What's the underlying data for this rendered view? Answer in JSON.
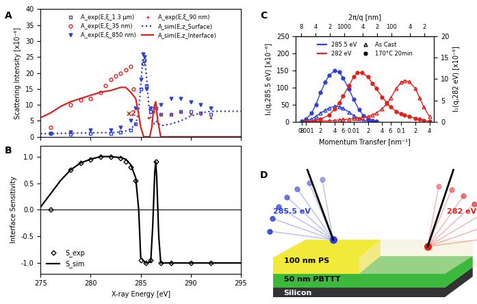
{
  "chart_data": [
    {
      "type": "line",
      "panel": "A",
      "ylabel": "Scattering Intensity [x10⁻⁶]",
      "xlim": [
        275,
        295
      ],
      "ylim": [
        0,
        40
      ],
      "xticks": [
        275,
        280,
        285,
        290,
        295
      ],
      "yticks": [
        0,
        5,
        10,
        15,
        20,
        25,
        30,
        35,
        40
      ],
      "tick_labels": "y",
      "legend": "upper center",
      "annotations": [
        {
          "text": "x2",
          "x": 283.6,
          "y": 6.5
        }
      ],
      "series": [
        {
          "name": "A_exp(E,ξ_1.3 µm)",
          "color": "#2a3fd6",
          "marker": "open_square",
          "line_style": "none",
          "x": [
            276,
            278,
            280,
            282,
            283,
            284,
            284.5,
            285,
            285.2,
            285.4,
            285.6,
            286,
            286.5,
            287,
            288,
            289,
            290,
            291,
            292
          ],
          "values": [
            1,
            0.8,
            1,
            1,
            1.5,
            2,
            4,
            15,
            23,
            24,
            16,
            8,
            9,
            7,
            7,
            8,
            8,
            7.5,
            7
          ]
        },
        {
          "name": "A_exp(E,ξ_35 nm)",
          "color": "#e0201b",
          "marker": "open_circle",
          "line_style": "none",
          "x": [
            276,
            278,
            279,
            280,
            281,
            281.5,
            282,
            282.5,
            283,
            283.5,
            284,
            284.3
          ],
          "values": [
            3,
            10,
            11.5,
            12,
            14,
            16,
            18,
            19,
            20,
            21,
            22,
            15
          ]
        },
        {
          "name": "A_exp(E,ξ_850 nm)",
          "color": "#2a3fd6",
          "marker": "filled_triangle_down",
          "line_style": "none",
          "x": [
            276,
            278,
            280,
            282,
            283,
            284,
            284.5,
            285,
            285.2,
            285.4,
            285.6,
            286,
            287,
            288,
            289,
            290,
            291,
            292
          ],
          "values": [
            1,
            1.5,
            2,
            2,
            3,
            5,
            9,
            18,
            26,
            25,
            15,
            9,
            10,
            12,
            12,
            11,
            10,
            9
          ]
        },
        {
          "name": "A_exp(E,ξ_90 nm)",
          "color": "#e0201b",
          "marker": "plus",
          "line_style": "none",
          "x": [
            285.8,
            286.3,
            287,
            288,
            289,
            290,
            291,
            292
          ],
          "values": [
            6,
            8,
            7,
            7,
            8,
            7,
            7,
            6
          ]
        },
        {
          "name": "A_sim(E,z_Surface)",
          "color": "#2a3fd6",
          "marker": "none",
          "line_style": "dotted",
          "x": [
            275,
            276,
            277,
            278,
            279,
            280,
            281,
            282,
            283,
            283.5,
            284,
            284.5,
            284.8,
            285,
            285.2,
            285.4,
            285.6,
            285.8,
            286,
            286.3,
            286.5,
            287,
            288,
            289,
            290,
            291,
            292,
            293,
            294,
            295
          ],
          "values": [
            1.0,
            1.0,
            1.1,
            1.1,
            1.2,
            1.2,
            1.3,
            1.3,
            1.5,
            1.8,
            2.5,
            4,
            8,
            16,
            24,
            25,
            18,
            10,
            6,
            4,
            5,
            3.5,
            4,
            5,
            6.5,
            7.5,
            8,
            8,
            8,
            8
          ]
        },
        {
          "name": "A_sim(E,z_Interface)",
          "color": "#e0201b",
          "marker": "none",
          "line_style": "solid",
          "x": [
            275,
            276,
            277,
            278,
            279,
            280,
            281,
            282,
            283,
            283.5,
            284,
            284.5,
            284.8,
            285,
            285.3,
            285.6,
            285.9,
            286.1,
            286.3,
            286.5,
            286.7,
            287,
            288,
            290,
            295
          ],
          "values": [
            6,
            7.5,
            9.5,
            11,
            12,
            13,
            14,
            14.5,
            15.5,
            15.5,
            14,
            12,
            7,
            3,
            0,
            0,
            0,
            3,
            9,
            11,
            5,
            0,
            0,
            0,
            0
          ]
        }
      ]
    },
    {
      "type": "line",
      "panel": "B",
      "xlabel": "X-ray Energy [eV]",
      "ylabel": "Interface Sensitivity",
      "xlim": [
        275,
        295
      ],
      "ylim": [
        -1.2,
        1.2
      ],
      "xticks": [
        275,
        280,
        285,
        290,
        295
      ],
      "yticks": [
        -1.0,
        -0.5,
        0.0,
        0.5,
        1.0
      ],
      "hlines": [
        0
      ],
      "legend": "lower left",
      "series": [
        {
          "name": "S_exp",
          "color": "#000000",
          "marker": "open_diamond",
          "line_style": "none",
          "x": [
            276,
            278,
            279,
            280,
            281,
            282,
            283,
            283.5,
            284,
            284.5,
            285,
            285.5,
            286,
            286.5,
            287,
            288,
            290,
            292
          ],
          "values": [
            0.0,
            0.75,
            0.88,
            0.95,
            1.0,
            1.0,
            0.97,
            0.9,
            0.8,
            0.55,
            -0.95,
            -1.0,
            -0.95,
            0.9,
            -1.0,
            -1.0,
            -1.0,
            -1.0
          ]
        },
        {
          "name": "S_sim",
          "color": "#000000",
          "marker": "none",
          "line_style": "solid",
          "x": [
            275,
            276,
            277,
            278,
            279,
            280,
            281,
            282,
            283,
            283.5,
            284,
            284.5,
            284.8,
            285,
            285.5,
            286,
            286.2,
            286.4,
            286.5,
            286.6,
            286.8,
            287,
            288,
            290,
            295
          ],
          "values": [
            0.05,
            0.3,
            0.55,
            0.75,
            0.88,
            0.95,
            1.0,
            1.0,
            0.98,
            0.95,
            0.85,
            0.6,
            0.0,
            -0.9,
            -1.0,
            -0.98,
            -0.3,
            0.7,
            0.9,
            0.6,
            -0.5,
            -1.0,
            -1.0,
            -1.0,
            -1.0
          ]
        }
      ]
    },
    {
      "type": "line",
      "panel": "C",
      "log": "x",
      "xlabel": "Momentum Transfer [nm⁻¹]",
      "x2label": "2π/q [nm]",
      "ylabel": "I₁(q,285.5 eV) [x10⁻⁶]",
      "y2label": "I₁(q,282 eV) [x10⁻⁶]",
      "xlim": [
        0.0006,
        0.5
      ],
      "ylim": [
        0,
        250
      ],
      "y2lim": [
        0,
        20
      ],
      "xticks": [
        {
          "value": 0.0008,
          "label": "8"
        },
        0.001,
        {
          "value": 0.002,
          "label": "2"
        },
        {
          "value": 0.004,
          "label": "4"
        },
        {
          "value": 0.006,
          "label": "6"
        },
        0.01,
        {
          "value": 0.02,
          "label": "2"
        },
        {
          "value": 0.04,
          "label": "4"
        },
        {
          "value": 0.06,
          "label": "6"
        },
        0.1,
        {
          "value": 0.2,
          "label": "2"
        },
        {
          "value": 0.4,
          "label": "4"
        }
      ],
      "x2ticks": [
        {
          "value": 8000,
          "label": "8"
        },
        {
          "value": 4000,
          "label": "4"
        },
        {
          "value": 2000,
          "label": "2"
        },
        1000,
        {
          "value": 400,
          "label": "4"
        },
        {
          "value": 200,
          "label": "2"
        },
        100,
        {
          "value": 40,
          "label": "4"
        },
        {
          "value": 20,
          "label": "2"
        }
      ],
      "yticks": [
        0,
        50,
        100,
        150,
        200,
        250
      ],
      "y2ticks": [
        0,
        5,
        10,
        15,
        20
      ],
      "legend": "upper center",
      "legend_entries": [
        {
          "name": "285.5 eV",
          "color": "#2a3fd6",
          "marker": "none",
          "line_style": "solid"
        },
        {
          "name": "282 eV",
          "color": "#e0201b",
          "marker": "none",
          "line_style": "solid"
        },
        {
          "name": "As Cast",
          "color": "#000000",
          "marker": "open_triangle_up",
          "line_style": "none"
        },
        {
          "name": "170°C 20min",
          "color": "#000000",
          "marker": "filled_circle",
          "line_style": "none"
        }
      ],
      "series": [
        {
          "color": "#2a3fd6",
          "marker": "filled_circle",
          "line_style": "solid",
          "x": [
            0.0008,
            0.001,
            0.0013,
            0.0016,
            0.002,
            0.0025,
            0.003,
            0.004,
            0.005,
            0.006,
            0.008,
            0.01,
            0.013,
            0.016,
            0.02,
            0.025,
            0.03
          ],
          "values": [
            2,
            8,
            25,
            50,
            85,
            115,
            135,
            150,
            145,
            128,
            95,
            65,
            35,
            18,
            8,
            3,
            1
          ]
        },
        {
          "color": "#2a3fd6",
          "marker": "open_triangle_up",
          "line_style": "solid",
          "x": [
            0.0008,
            0.001,
            0.0013,
            0.0016,
            0.002,
            0.0025,
            0.003,
            0.004,
            0.005,
            0.006,
            0.008,
            0.01,
            0.013,
            0.016,
            0.02,
            0.025,
            0.03
          ],
          "values": [
            1,
            3,
            8,
            15,
            25,
            33,
            40,
            45,
            44,
            39,
            28,
            18,
            9,
            4,
            2,
            1,
            0
          ]
        },
        {
          "color": "#e0201b",
          "marker": "filled_circle",
          "line_style": "solid",
          "axis": "y2",
          "x": [
            0.001,
            0.0015,
            0.002,
            0.003,
            0.004,
            0.005,
            0.006,
            0.008,
            0.01,
            0.012,
            0.015,
            0.02,
            0.025,
            0.03,
            0.04,
            0.05,
            0.06,
            0.08,
            0.1,
            0.12,
            0.15,
            0.2,
            0.25,
            0.3,
            0.4
          ],
          "values": [
            0.1,
            0.3,
            0.6,
            1.5,
            3,
            4.5,
            6,
            8.5,
            10.5,
            11.5,
            11.5,
            10.5,
            9,
            7.8,
            5.8,
            4.5,
            3.5,
            2.3,
            1.8,
            1.5,
            1.2,
            0.8,
            0.5,
            0.3,
            0.1
          ]
        },
        {
          "color": "#e0201b",
          "marker": "open_triangle_up",
          "line_style": "solid",
          "axis": "y2",
          "x": [
            0.001,
            0.0015,
            0.002,
            0.003,
            0.004,
            0.005,
            0.006,
            0.008,
            0.01,
            0.012,
            0.015,
            0.02,
            0.025,
            0.03,
            0.04,
            0.05,
            0.06,
            0.08,
            0.1,
            0.12,
            0.15,
            0.2,
            0.25,
            0.3,
            0.4
          ],
          "values": [
            0,
            0,
            0.1,
            0.2,
            0.3,
            0.4,
            0.5,
            0.6,
            0.7,
            0.8,
            0.9,
            1.2,
            1.6,
            2,
            3,
            4.2,
            5.5,
            7.8,
            9.2,
            9.6,
            9.4,
            7.8,
            5.5,
            3.5,
            1.2
          ]
        }
      ]
    }
  ],
  "diagram": {
    "panel": "D",
    "layers": [
      "100 nm PS",
      "50 nm PBTTT",
      "Silicon"
    ],
    "beams": [
      {
        "label": "285.5 eV",
        "color": "#2a3fd6"
      },
      {
        "label": "282 eV",
        "color": "#e0201b"
      }
    ]
  }
}
